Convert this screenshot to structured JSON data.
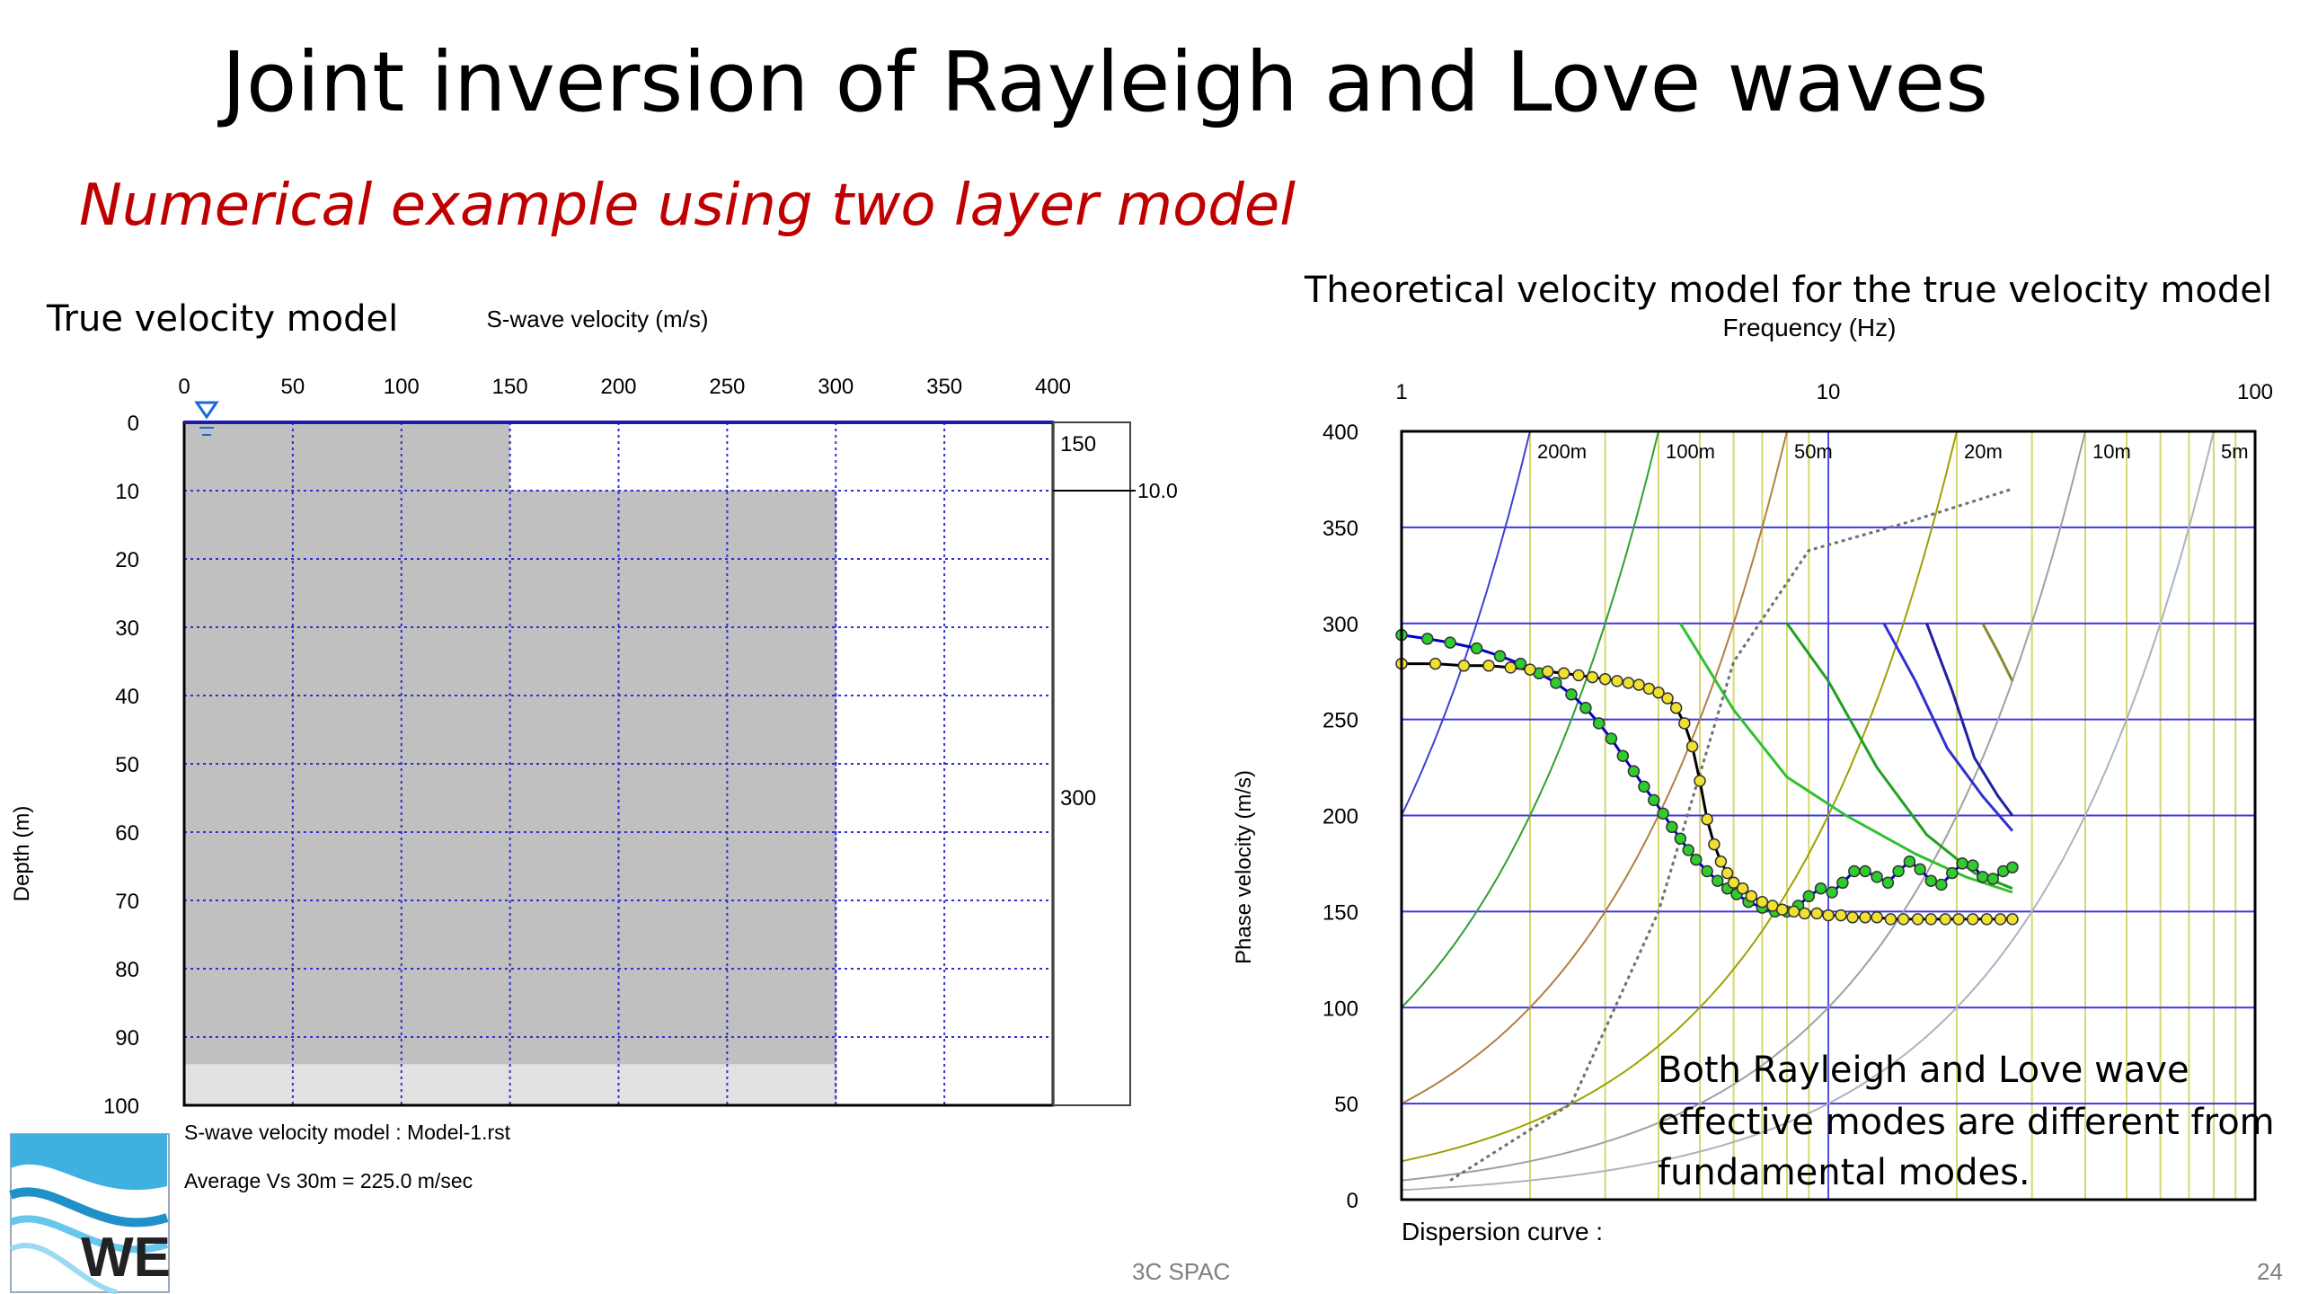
{
  "slide": {
    "title": "Joint inversion of Rayleigh and Love waves",
    "subtitle": "Numerical example using two layer model",
    "footer": "3C SPAC",
    "page_number": "24"
  },
  "logo": {
    "text": "WE",
    "icon": "we-wave-logo"
  },
  "colors": {
    "subtitle": "#c00000",
    "grid_left": "#3030d0",
    "layer_fill": "#c0c0c0",
    "halfspace_fill": "#e2e2e2",
    "grid_right_h": "#3a3ae0",
    "grid_right_v": "#d8d870",
    "rayleigh_points": "#2ecc2e",
    "love_points": "#f0e030"
  },
  "chart_data": [
    {
      "type": "area",
      "caption": "True velocity model",
      "xlabel": "S-wave velocity (m/s)",
      "ylabel": "Depth (m)",
      "xlim": [
        0,
        400
      ],
      "ylim": [
        0,
        100
      ],
      "x_ticks": [
        "0",
        "50",
        "100",
        "150",
        "200",
        "250",
        "300",
        "350",
        "400"
      ],
      "y_ticks": [
        "0",
        "10",
        "20",
        "30",
        "40",
        "50",
        "60",
        "70",
        "80",
        "90",
        "100"
      ],
      "layers": [
        {
          "top": 0,
          "bottom": 10,
          "vs": 150
        },
        {
          "top": 10,
          "bottom": 100,
          "vs": 300
        }
      ],
      "halfspace_depth": 94,
      "side_labels": {
        "layer1_vs": "150",
        "layer2_vs": "300",
        "interface_depth": "10.0"
      },
      "model_label": "S-wave velocity model  : Model-1.rst",
      "average_label": "Average Vs 30m = 225.0 m/sec",
      "grid": true
    },
    {
      "type": "scatter",
      "caption": "Theoretical velocity model for the true velocity model",
      "xlabel": "Frequency (Hz)",
      "ylabel": "Phase velocity (m/s)",
      "x_scale": "log",
      "xlim": [
        1,
        100
      ],
      "ylim": [
        0,
        400
      ],
      "x_ticks": [
        "1",
        "10",
        "100"
      ],
      "y_ticks": [
        "0",
        "50",
        "100",
        "150",
        "200",
        "250",
        "300",
        "350",
        "400"
      ],
      "wavelength_labels": [
        "200m",
        "100m",
        "50m",
        "20m",
        "10m",
        "5m"
      ],
      "wavelengths_m": [
        200,
        100,
        50,
        20,
        10,
        5
      ],
      "footer_label": "Dispersion curve :",
      "annotation": [
        "Both Rayleigh and Love wave",
        "effective modes are different from",
        "fundamental modes."
      ],
      "grid": true,
      "series": [
        {
          "kind": "rayleigh-effective",
          "color": "#2ecc2e",
          "line_color": "#0000cc",
          "x": [
            1.0,
            1.15,
            1.3,
            1.5,
            1.7,
            1.9,
            2.1,
            2.3,
            2.5,
            2.7,
            2.9,
            3.1,
            3.3,
            3.5,
            3.7,
            3.9,
            4.1,
            4.3,
            4.5,
            4.7,
            4.9,
            5.2,
            5.5,
            5.8,
            6.1,
            6.5,
            7.0,
            7.5,
            8.0,
            8.5,
            9.0,
            9.6,
            10.2,
            10.8,
            11.5,
            12.2,
            13.0,
            13.8,
            14.6,
            15.5,
            16.4,
            17.4,
            18.4,
            19.5,
            20.6,
            21.8,
            23.0,
            24.3,
            25.7,
            27.0
          ],
          "y": [
            294,
            292,
            290,
            287,
            283,
            279,
            274,
            269,
            263,
            256,
            248,
            240,
            231,
            223,
            215,
            208,
            201,
            194,
            188,
            182,
            177,
            171,
            166,
            162,
            159,
            155,
            152,
            150,
            150,
            153,
            158,
            162,
            160,
            165,
            171,
            171,
            168,
            165,
            171,
            176,
            172,
            166,
            164,
            170,
            175,
            174,
            168,
            167,
            171,
            173
          ]
        },
        {
          "kind": "love-effective",
          "color": "#f0e030",
          "line_color": "#000000",
          "x": [
            1.0,
            1.2,
            1.4,
            1.6,
            1.8,
            2.0,
            2.2,
            2.4,
            2.6,
            2.8,
            3.0,
            3.2,
            3.4,
            3.6,
            3.8,
            4.0,
            4.2,
            4.4,
            4.6,
            4.8,
            5.0,
            5.2,
            5.4,
            5.6,
            5.8,
            6.0,
            6.3,
            6.6,
            7.0,
            7.4,
            7.8,
            8.3,
            8.8,
            9.4,
            10.0,
            10.7,
            11.4,
            12.2,
            13.0,
            14.0,
            15.0,
            16.2,
            17.4,
            18.8,
            20.2,
            21.8,
            23.5,
            25.3,
            27.0
          ],
          "y": [
            279,
            279,
            278,
            278,
            277,
            276,
            275,
            274,
            273,
            272,
            271,
            270,
            269,
            268,
            266,
            264,
            261,
            256,
            248,
            236,
            218,
            198,
            185,
            176,
            170,
            165,
            162,
            158,
            155,
            153,
            151,
            150,
            149,
            149,
            148,
            148,
            147,
            147,
            147,
            146,
            146,
            146,
            146,
            146,
            146,
            146,
            146,
            146,
            146
          ]
        }
      ]
    }
  ]
}
